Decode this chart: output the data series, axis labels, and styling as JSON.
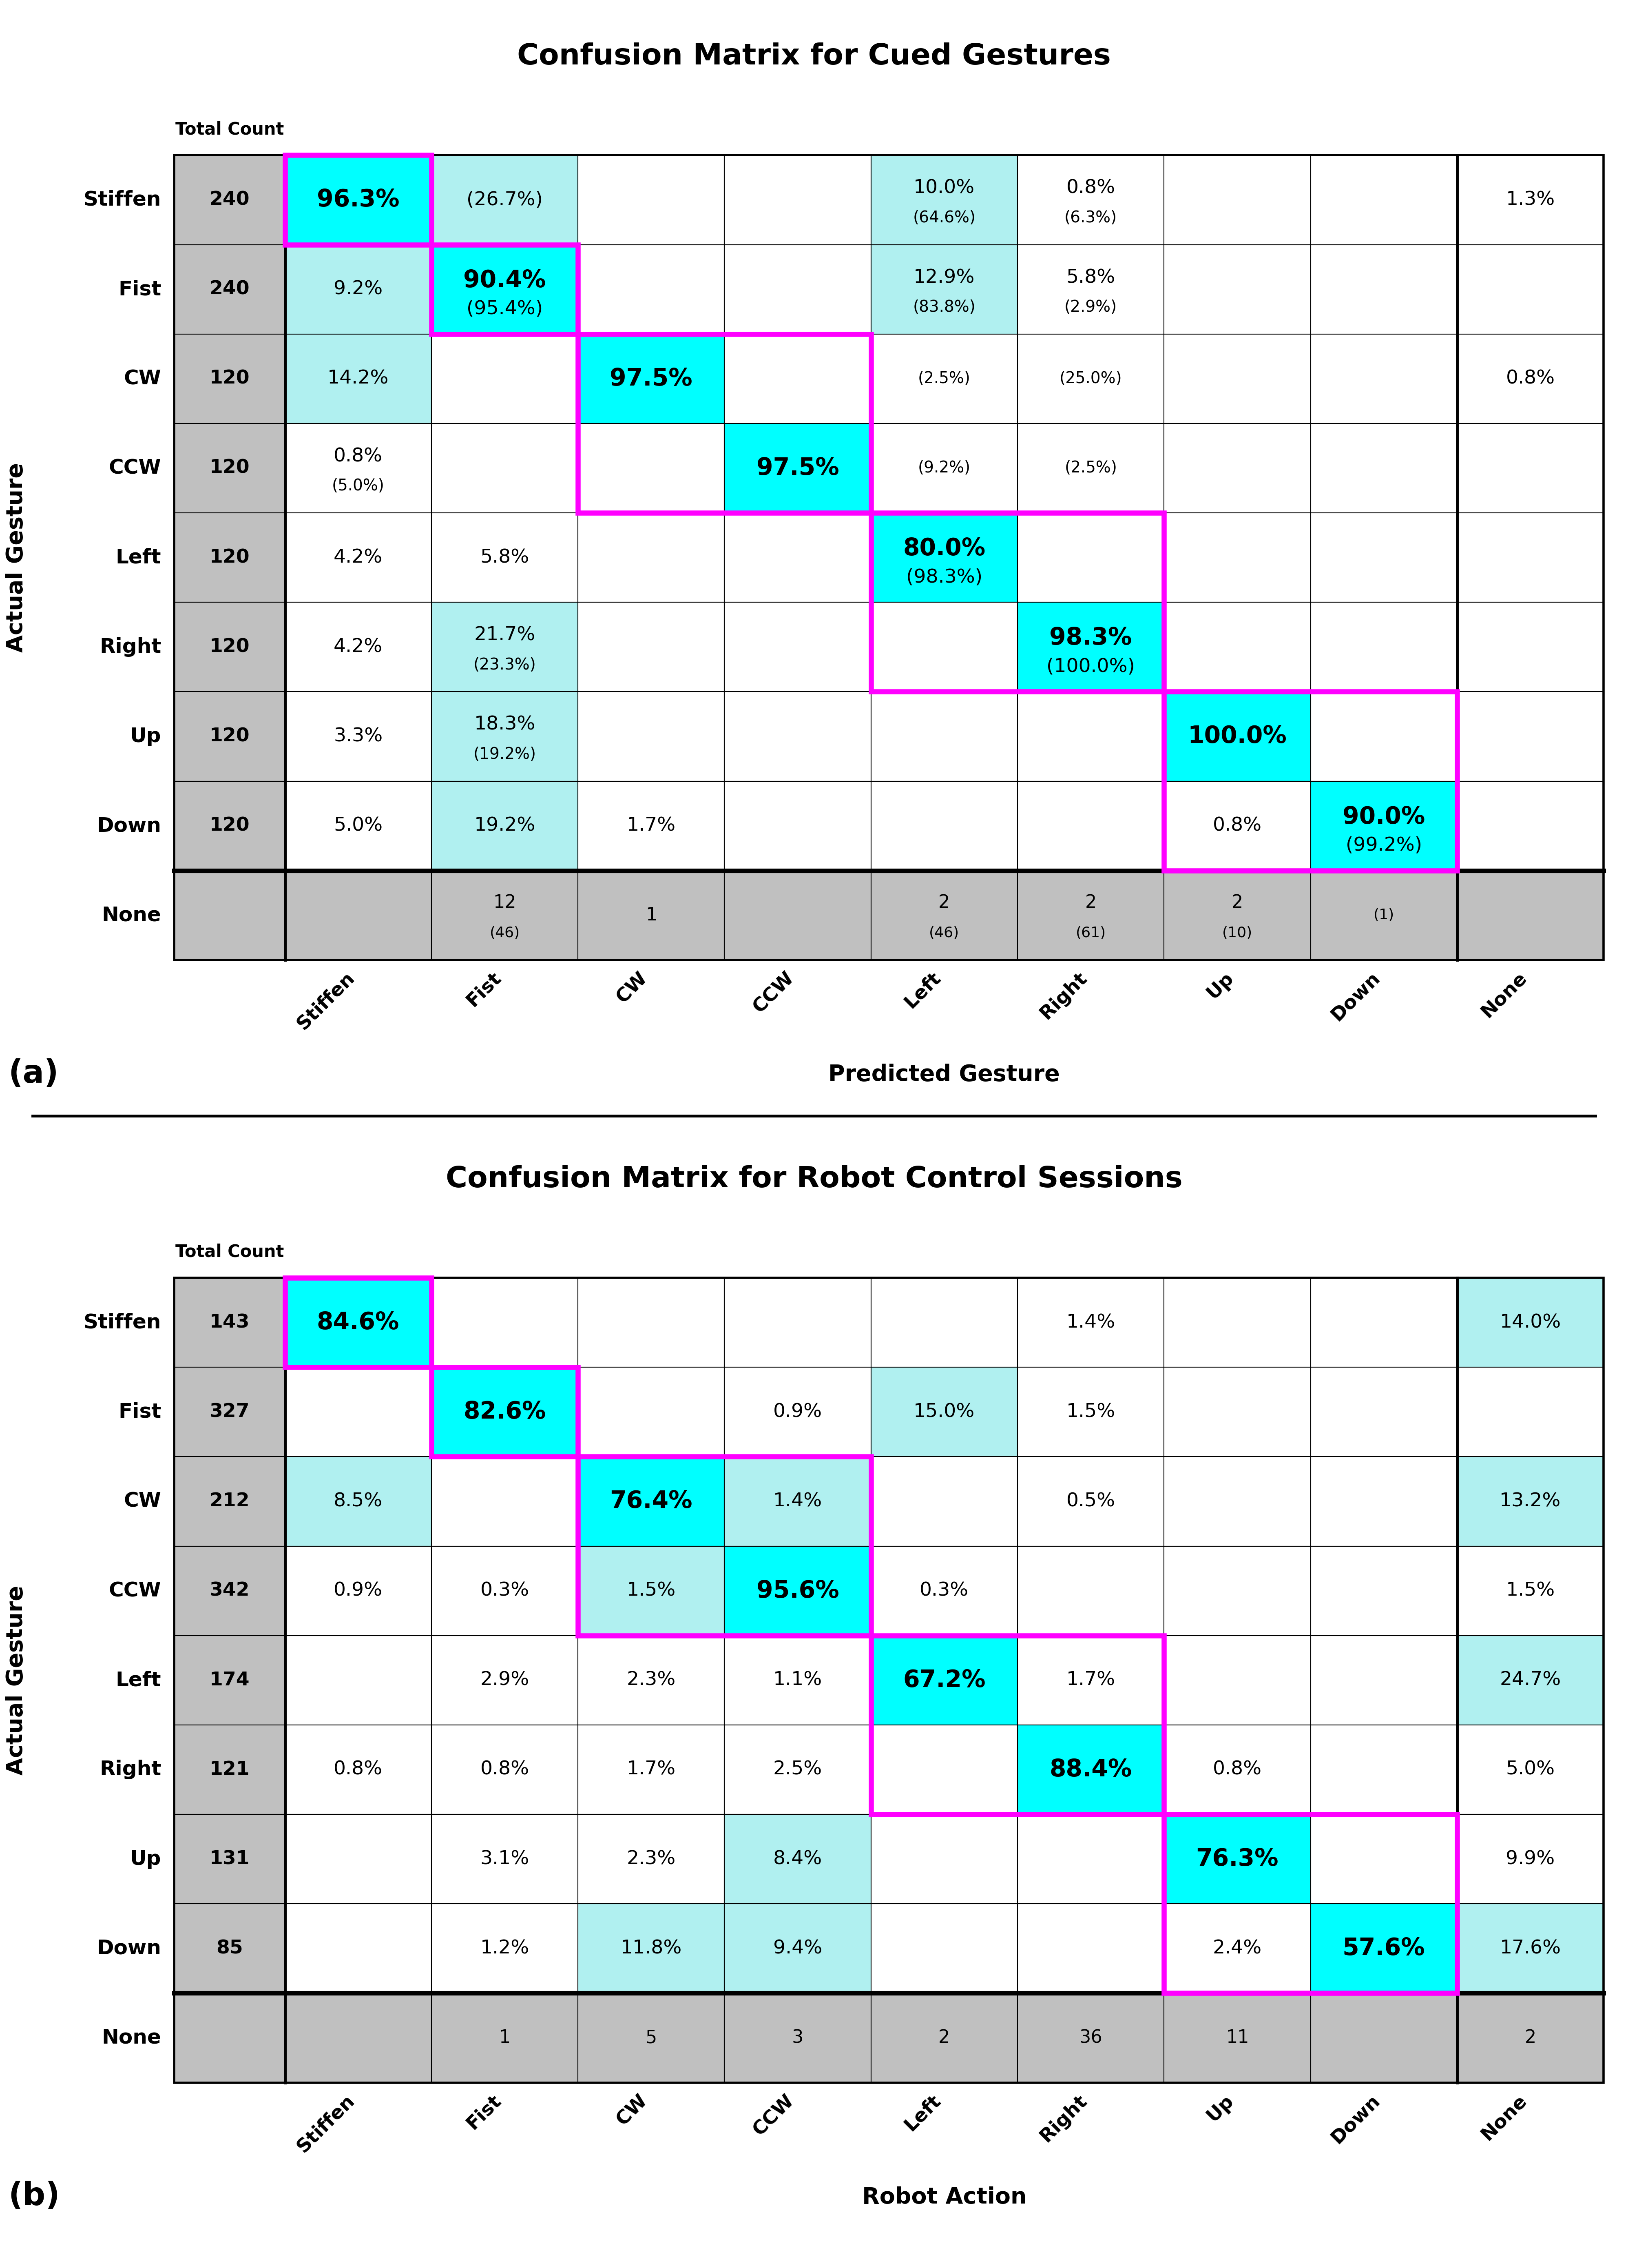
{
  "chart_a": {
    "title": "Confusion Matrix for Cued Gestures",
    "xlabel": "Predicted Gesture",
    "ylabel": "Actual Gesture",
    "row_labels": [
      "Stiffen",
      "Fist",
      "CW",
      "CCW",
      "Left",
      "Right",
      "Up",
      "Down",
      "None"
    ],
    "col_labels": [
      "Stiffen",
      "Fist",
      "CW",
      "CCW",
      "Left",
      "Right",
      "Up",
      "Down",
      "None"
    ],
    "total_counts": [
      "240",
      "240",
      "120",
      "120",
      "120",
      "120",
      "120",
      "120",
      ""
    ],
    "cells": [
      [
        [
          "96.3%",
          "",
          "bold",
          "cyan"
        ],
        [
          "(26.7%)",
          "",
          "normal",
          "light_cyan"
        ],
        [
          "",
          "",
          "normal",
          "white"
        ],
        [
          "",
          "",
          "normal",
          "white"
        ],
        [
          "10.0%",
          "(64.6%)",
          "normal",
          "light_cyan"
        ],
        [
          "0.8%",
          "(6.3%)",
          "normal",
          "white"
        ],
        [
          "",
          "",
          "normal",
          "white"
        ],
        [
          "",
          "",
          "normal",
          "white"
        ],
        [
          "1.3%",
          "",
          "normal",
          "white"
        ]
      ],
      [
        [
          "9.2%",
          "",
          "normal",
          "light_cyan"
        ],
        [
          "90.4%",
          "(95.4%)",
          "bold",
          "cyan"
        ],
        [
          "",
          "",
          "normal",
          "white"
        ],
        [
          "",
          "",
          "normal",
          "white"
        ],
        [
          "12.9%",
          "(83.8%)",
          "normal",
          "light_cyan"
        ],
        [
          "5.8%",
          "(2.9%)",
          "normal",
          "white"
        ],
        [
          "",
          "",
          "normal",
          "white"
        ],
        [
          "",
          "",
          "normal",
          "white"
        ],
        [
          "",
          "",
          "normal",
          "white"
        ]
      ],
      [
        [
          "14.2%",
          "",
          "normal",
          "light_cyan"
        ],
        [
          "",
          "",
          "normal",
          "white"
        ],
        [
          "97.5%",
          "",
          "bold",
          "cyan"
        ],
        [
          "",
          "",
          "normal",
          "white"
        ],
        [
          "",
          "(2.5%)",
          "normal",
          "white"
        ],
        [
          "",
          "(25.0%)",
          "normal",
          "white"
        ],
        [
          "",
          "",
          "normal",
          "white"
        ],
        [
          "",
          "",
          "normal",
          "white"
        ],
        [
          "0.8%",
          "",
          "normal",
          "white"
        ]
      ],
      [
        [
          "0.8%",
          "(5.0%)",
          "normal",
          "white"
        ],
        [
          "",
          "",
          "normal",
          "white"
        ],
        [
          "",
          "",
          "normal",
          "white"
        ],
        [
          "97.5%",
          "",
          "bold",
          "cyan"
        ],
        [
          "",
          "(9.2%)",
          "normal",
          "white"
        ],
        [
          "",
          "(2.5%)",
          "normal",
          "white"
        ],
        [
          "",
          "",
          "normal",
          "white"
        ],
        [
          "",
          "",
          "normal",
          "white"
        ],
        [
          "",
          "",
          "normal",
          "white"
        ]
      ],
      [
        [
          "4.2%",
          "",
          "normal",
          "white"
        ],
        [
          "5.8%",
          "",
          "normal",
          "white"
        ],
        [
          "",
          "",
          "normal",
          "white"
        ],
        [
          "",
          "",
          "normal",
          "white"
        ],
        [
          "80.0%",
          "(98.3%)",
          "bold",
          "cyan"
        ],
        [
          "",
          "",
          "normal",
          "white"
        ],
        [
          "",
          "",
          "normal",
          "white"
        ],
        [
          "",
          "",
          "normal",
          "white"
        ],
        [
          "",
          "",
          "normal",
          "white"
        ]
      ],
      [
        [
          "4.2%",
          "",
          "normal",
          "white"
        ],
        [
          "21.7%",
          "(23.3%)",
          "normal",
          "light_cyan"
        ],
        [
          "",
          "",
          "normal",
          "white"
        ],
        [
          "",
          "",
          "normal",
          "white"
        ],
        [
          "",
          "",
          "normal",
          "white"
        ],
        [
          "98.3%",
          "(100.0%)",
          "bold",
          "cyan"
        ],
        [
          "",
          "",
          "normal",
          "white"
        ],
        [
          "",
          "",
          "normal",
          "white"
        ],
        [
          "",
          "",
          "normal",
          "white"
        ]
      ],
      [
        [
          "3.3%",
          "",
          "normal",
          "white"
        ],
        [
          "18.3%",
          "(19.2%)",
          "normal",
          "light_cyan"
        ],
        [
          "",
          "",
          "normal",
          "white"
        ],
        [
          "",
          "",
          "normal",
          "white"
        ],
        [
          "",
          "",
          "normal",
          "white"
        ],
        [
          "",
          "",
          "normal",
          "white"
        ],
        [
          "100.0%",
          "",
          "bold",
          "cyan"
        ],
        [
          "",
          "",
          "normal",
          "white"
        ],
        [
          "",
          "",
          "normal",
          "white"
        ]
      ],
      [
        [
          "5.0%",
          "",
          "normal",
          "white"
        ],
        [
          "19.2%",
          "",
          "normal",
          "light_cyan"
        ],
        [
          "1.7%",
          "",
          "normal",
          "white"
        ],
        [
          "",
          "",
          "normal",
          "white"
        ],
        [
          "",
          "",
          "normal",
          "white"
        ],
        [
          "",
          "",
          "normal",
          "white"
        ],
        [
          "0.8%",
          "",
          "normal",
          "white"
        ],
        [
          "90.0%",
          "(99.2%)",
          "bold",
          "cyan"
        ],
        [
          "",
          "",
          "normal",
          "white"
        ]
      ],
      [
        [
          "",
          "",
          "normal",
          "gray"
        ],
        [
          "12",
          "(46)",
          "normal",
          "gray"
        ],
        [
          "1",
          "",
          "normal",
          "gray"
        ],
        [
          "",
          "",
          "normal",
          "gray"
        ],
        [
          "2",
          "(46)",
          "normal",
          "gray"
        ],
        [
          "2",
          "(61)",
          "normal",
          "gray"
        ],
        [
          "2",
          "(10)",
          "normal",
          "gray"
        ],
        [
          "",
          "(1)",
          "normal",
          "gray"
        ],
        [
          "",
          "",
          "normal",
          "gray"
        ]
      ]
    ],
    "magenta_groups": [
      {
        "rows": [
          0,
          0
        ],
        "cols": [
          0,
          0
        ]
      },
      {
        "rows": [
          1,
          1
        ],
        "cols": [
          1,
          1
        ]
      },
      {
        "rows": [
          2,
          3
        ],
        "cols": [
          2,
          3
        ]
      },
      {
        "rows": [
          4,
          5
        ],
        "cols": [
          4,
          5
        ]
      },
      {
        "rows": [
          6,
          7
        ],
        "cols": [
          6,
          7
        ]
      }
    ]
  },
  "chart_b": {
    "title": "Confusion Matrix for Robot Control Sessions",
    "xlabel": "Robot Action",
    "ylabel": "Actual Gesture",
    "row_labels": [
      "Stiffen",
      "Fist",
      "CW",
      "CCW",
      "Left",
      "Right",
      "Up",
      "Down",
      "None"
    ],
    "col_labels": [
      "Stiffen",
      "Fist",
      "CW",
      "CCW",
      "Left",
      "Right",
      "Up",
      "Down",
      "None"
    ],
    "total_counts": [
      "143",
      "327",
      "212",
      "342",
      "174",
      "121",
      "131",
      "85",
      ""
    ],
    "cells": [
      [
        [
          "84.6%",
          "",
          "bold",
          "cyan"
        ],
        [
          "",
          "",
          "normal",
          "white"
        ],
        [
          "",
          "",
          "normal",
          "white"
        ],
        [
          "",
          "",
          "normal",
          "white"
        ],
        [
          "",
          "",
          "normal",
          "white"
        ],
        [
          "1.4%",
          "",
          "normal",
          "white"
        ],
        [
          "",
          "",
          "normal",
          "white"
        ],
        [
          "",
          "",
          "normal",
          "white"
        ],
        [
          "14.0%",
          "",
          "normal",
          "light_cyan"
        ]
      ],
      [
        [
          "",
          "",
          "normal",
          "white"
        ],
        [
          "82.6%",
          "",
          "bold",
          "cyan"
        ],
        [
          "",
          "",
          "normal",
          "white"
        ],
        [
          "0.9%",
          "",
          "normal",
          "white"
        ],
        [
          "15.0%",
          "",
          "normal",
          "light_cyan"
        ],
        [
          "1.5%",
          "",
          "normal",
          "white"
        ],
        [
          "",
          "",
          "normal",
          "white"
        ],
        [
          "",
          "",
          "normal",
          "white"
        ],
        [
          "",
          "",
          "normal",
          "white"
        ]
      ],
      [
        [
          "8.5%",
          "",
          "normal",
          "light_cyan"
        ],
        [
          "",
          "",
          "normal",
          "white"
        ],
        [
          "76.4%",
          "",
          "bold",
          "cyan"
        ],
        [
          "1.4%",
          "",
          "normal",
          "light_cyan"
        ],
        [
          "",
          "",
          "normal",
          "white"
        ],
        [
          "0.5%",
          "",
          "normal",
          "white"
        ],
        [
          "",
          "",
          "normal",
          "white"
        ],
        [
          "",
          "",
          "normal",
          "white"
        ],
        [
          "13.2%",
          "",
          "normal",
          "light_cyan"
        ]
      ],
      [
        [
          "0.9%",
          "",
          "normal",
          "white"
        ],
        [
          "0.3%",
          "",
          "normal",
          "white"
        ],
        [
          "1.5%",
          "",
          "normal",
          "light_cyan"
        ],
        [
          "95.6%",
          "",
          "bold",
          "cyan"
        ],
        [
          "0.3%",
          "",
          "normal",
          "white"
        ],
        [
          "",
          "",
          "normal",
          "white"
        ],
        [
          "",
          "",
          "normal",
          "white"
        ],
        [
          "",
          "",
          "normal",
          "white"
        ],
        [
          "1.5%",
          "",
          "normal",
          "white"
        ]
      ],
      [
        [
          "",
          "",
          "normal",
          "white"
        ],
        [
          "2.9%",
          "",
          "normal",
          "white"
        ],
        [
          "2.3%",
          "",
          "normal",
          "white"
        ],
        [
          "1.1%",
          "",
          "normal",
          "white"
        ],
        [
          "67.2%",
          "",
          "bold",
          "cyan"
        ],
        [
          "1.7%",
          "",
          "normal",
          "white"
        ],
        [
          "",
          "",
          "normal",
          "white"
        ],
        [
          "",
          "",
          "normal",
          "white"
        ],
        [
          "24.7%",
          "",
          "normal",
          "light_cyan"
        ]
      ],
      [
        [
          "0.8%",
          "",
          "normal",
          "white"
        ],
        [
          "0.8%",
          "",
          "normal",
          "white"
        ],
        [
          "1.7%",
          "",
          "normal",
          "white"
        ],
        [
          "2.5%",
          "",
          "normal",
          "white"
        ],
        [
          "",
          "",
          "normal",
          "white"
        ],
        [
          "88.4%",
          "",
          "bold",
          "cyan"
        ],
        [
          "0.8%",
          "",
          "normal",
          "white"
        ],
        [
          "",
          "",
          "normal",
          "white"
        ],
        [
          "5.0%",
          "",
          "normal",
          "white"
        ]
      ],
      [
        [
          "",
          "",
          "normal",
          "white"
        ],
        [
          "3.1%",
          "",
          "normal",
          "white"
        ],
        [
          "2.3%",
          "",
          "normal",
          "white"
        ],
        [
          "8.4%",
          "",
          "normal",
          "light_cyan"
        ],
        [
          "",
          "",
          "normal",
          "white"
        ],
        [
          "",
          "",
          "normal",
          "white"
        ],
        [
          "76.3%",
          "",
          "bold",
          "cyan"
        ],
        [
          "",
          "",
          "normal",
          "white"
        ],
        [
          "9.9%",
          "",
          "normal",
          "white"
        ]
      ],
      [
        [
          "",
          "",
          "normal",
          "white"
        ],
        [
          "1.2%",
          "",
          "normal",
          "white"
        ],
        [
          "11.8%",
          "",
          "normal",
          "light_cyan"
        ],
        [
          "9.4%",
          "",
          "normal",
          "light_cyan"
        ],
        [
          "",
          "",
          "normal",
          "white"
        ],
        [
          "",
          "",
          "normal",
          "white"
        ],
        [
          "2.4%",
          "",
          "normal",
          "white"
        ],
        [
          "57.6%",
          "",
          "bold",
          "cyan"
        ],
        [
          "17.6%",
          "",
          "normal",
          "light_cyan"
        ]
      ],
      [
        [
          "",
          "",
          "normal",
          "gray"
        ],
        [
          "1",
          "",
          "normal",
          "gray"
        ],
        [
          "5",
          "",
          "normal",
          "gray"
        ],
        [
          "3",
          "",
          "normal",
          "gray"
        ],
        [
          "2",
          "",
          "normal",
          "gray"
        ],
        [
          "36",
          "",
          "normal",
          "gray"
        ],
        [
          "11",
          "",
          "normal",
          "gray"
        ],
        [
          "",
          "",
          "normal",
          "gray"
        ],
        [
          "2",
          "",
          "normal",
          "gray"
        ]
      ]
    ],
    "magenta_groups": [
      {
        "rows": [
          0,
          0
        ],
        "cols": [
          0,
          0
        ]
      },
      {
        "rows": [
          1,
          1
        ],
        "cols": [
          1,
          1
        ]
      },
      {
        "rows": [
          2,
          3
        ],
        "cols": [
          2,
          3
        ]
      },
      {
        "rows": [
          4,
          5
        ],
        "cols": [
          4,
          5
        ]
      },
      {
        "rows": [
          6,
          7
        ],
        "cols": [
          6,
          7
        ]
      }
    ]
  }
}
